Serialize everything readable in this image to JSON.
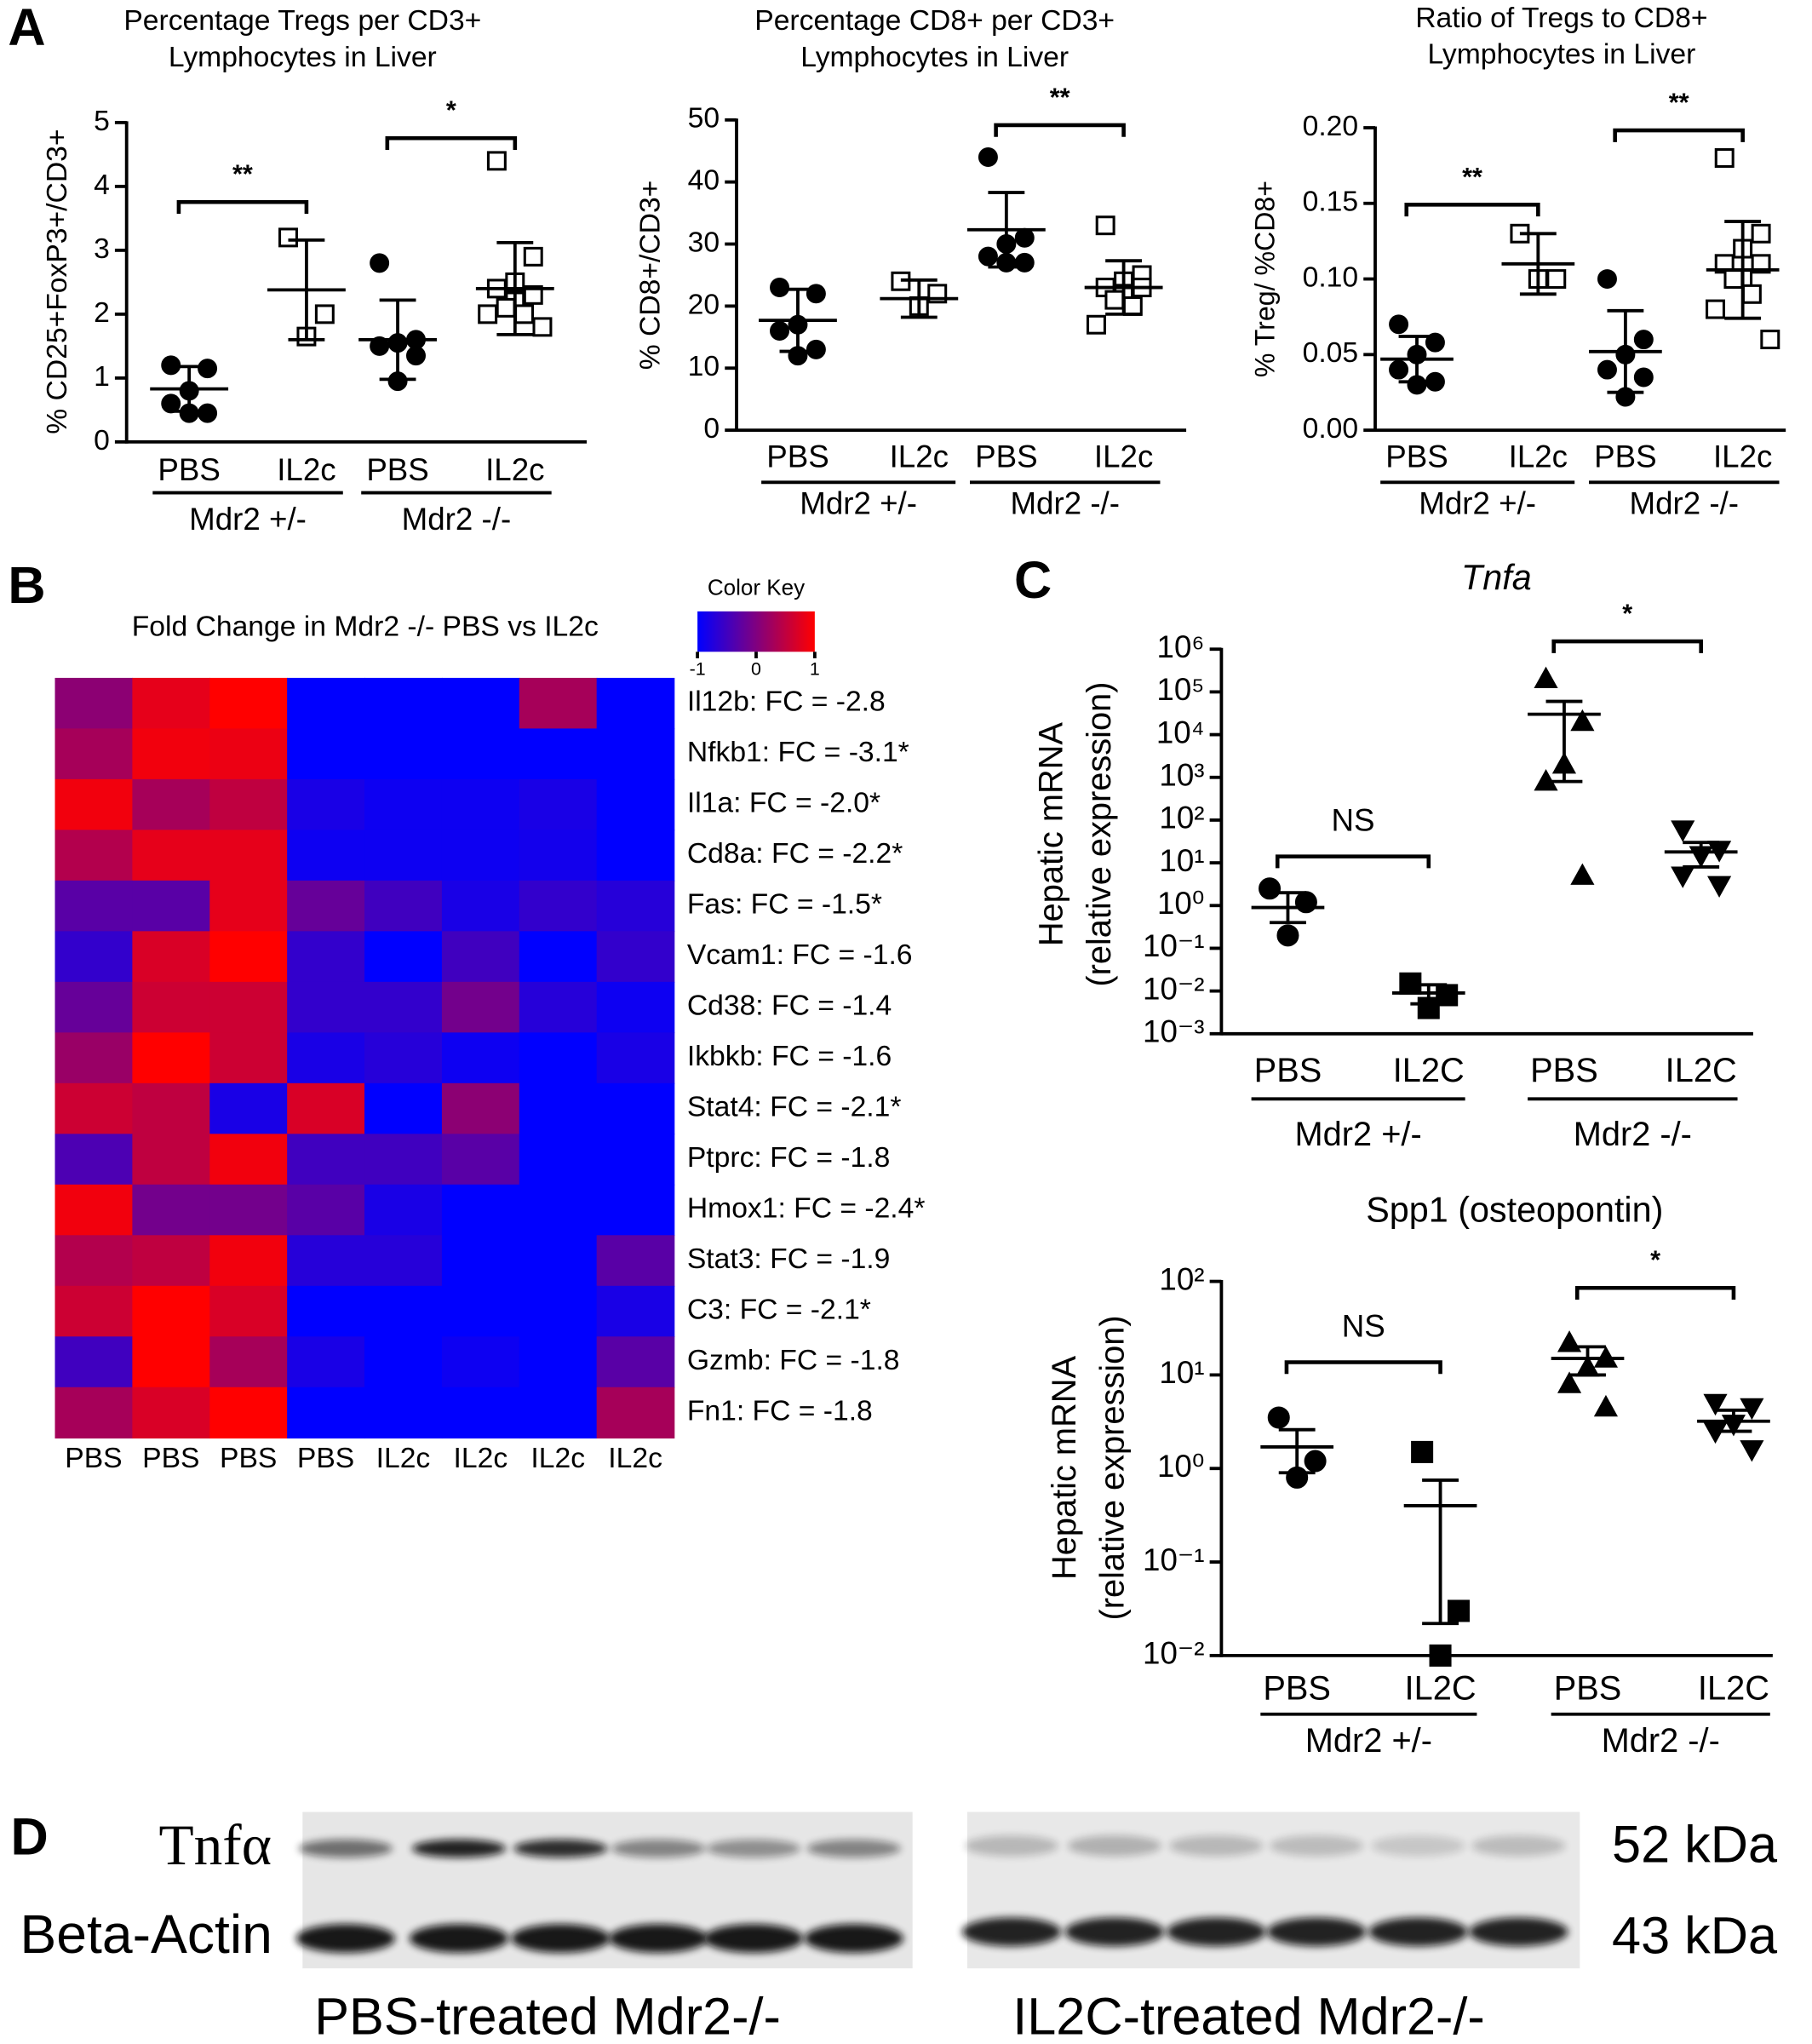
{
  "panel_labels": [
    "A",
    "B",
    "C",
    "D"
  ],
  "chart_data": [
    {
      "type": "strip",
      "title": [
        "Percentage Tregs per CD3+",
        "Lymphocytes in Liver"
      ],
      "ylabel": [
        "% CD25+FoxP3+/CD3+"
      ],
      "ylim": [
        0,
        5
      ],
      "yticks": [
        0,
        1,
        2,
        3,
        4,
        5
      ],
      "categories": [
        "PBS",
        "IL2c",
        "PBS",
        "IL2c"
      ],
      "markers": [
        "circle",
        "square_open",
        "circle",
        "square_open"
      ],
      "groups": [
        {
          "label": "Mdr2 +/-",
          "categories": [
            0,
            1
          ]
        },
        {
          "label": "Mdr2 -/-",
          "categories": [
            2,
            3
          ]
        }
      ],
      "points": [
        [
          1.2,
          1.15,
          0.8,
          0.6,
          0.45,
          0.45
        ],
        [
          3.2,
          2.0,
          1.65
        ],
        [
          2.8,
          1.6,
          1.55,
          1.5,
          1.35,
          0.95
        ],
        [
          4.4,
          2.9,
          2.5,
          2.4,
          2.3,
          2.2,
          2.1,
          2.0,
          2.0,
          1.8
        ]
      ],
      "means": [
        0.83,
        2.38,
        1.6,
        2.4
      ],
      "bar_low": [
        0.48,
        1.6,
        0.98,
        1.68
      ],
      "bar_high": [
        1.18,
        3.16,
        2.22,
        3.12
      ],
      "brackets": [
        {
          "label": "**",
          "from": 0,
          "to": 1
        },
        {
          "label": "*",
          "from": 2,
          "to": 3
        }
      ]
    },
    {
      "type": "strip",
      "title": [
        "Percentage CD8+ per CD3+",
        "Lymphocytes in Liver"
      ],
      "ylabel": [
        "% CD8+/CD3+"
      ],
      "ylim": [
        0,
        50
      ],
      "yticks": [
        0,
        10,
        20,
        30,
        40,
        50
      ],
      "categories": [
        "PBS",
        "IL2c",
        "PBS",
        "IL2c"
      ],
      "markers": [
        "circle",
        "square_open",
        "circle",
        "square_open"
      ],
      "groups": [
        {
          "label": "Mdr2 +/-",
          "categories": [
            0,
            1
          ]
        },
        {
          "label": "Mdr2 -/-",
          "categories": [
            2,
            3
          ]
        }
      ],
      "points": [
        [
          23,
          22,
          17,
          16,
          13,
          12
        ],
        [
          24,
          22,
          20
        ],
        [
          44,
          31,
          30,
          28,
          27,
          27
        ],
        [
          33,
          25,
          24,
          23,
          23,
          22,
          21,
          20,
          17
        ]
      ],
      "means": [
        17.7,
        21.2,
        32.3,
        23
      ],
      "bar_low": [
        12.7,
        18.2,
        26.3,
        18.7
      ],
      "bar_high": [
        22.7,
        24.2,
        38.3,
        27.3
      ],
      "brackets": [
        {
          "label": "**",
          "from": 2,
          "to": 3
        }
      ]
    },
    {
      "type": "strip",
      "title": [
        "Ratio of Tregs to CD8+",
        "Lymphocytes in Liver"
      ],
      "ylabel": [
        "% Treg/ %CD8+"
      ],
      "ylim": [
        0,
        0.2
      ],
      "yticks": [
        {
          "value": 0,
          "label": "0.00"
        },
        0.05,
        {
          "value": 0.1,
          "label": "0.10"
        },
        0.15,
        {
          "value": 0.2,
          "label": "0.20"
        }
      ],
      "categories": [
        "PBS",
        "IL2c",
        "PBS",
        "IL2c"
      ],
      "markers": [
        "circle",
        "square_open",
        "circle",
        "square_open"
      ],
      "groups": [
        {
          "label": "Mdr2 +/-",
          "categories": [
            0,
            1
          ]
        },
        {
          "label": "Mdr2 -/-",
          "categories": [
            2,
            3
          ]
        }
      ],
      "points": [
        [
          0.07,
          0.058,
          0.05,
          0.04,
          0.032,
          0.03
        ],
        [
          0.13,
          0.1,
          0.1
        ],
        [
          0.1,
          0.06,
          0.05,
          0.04,
          0.035,
          0.022
        ],
        [
          0.18,
          0.13,
          0.12,
          0.11,
          0.11,
          0.1,
          0.1,
          0.09,
          0.08,
          0.06
        ]
      ],
      "means": [
        0.047,
        0.11,
        0.052,
        0.106
      ],
      "bar_low": [
        0.032,
        0.09,
        0.025,
        0.074
      ],
      "bar_high": [
        0.062,
        0.13,
        0.079,
        0.138
      ],
      "brackets": [
        {
          "label": "**",
          "from": 0,
          "to": 1
        },
        {
          "label": "**",
          "from": 2,
          "to": 3
        }
      ]
    },
    {
      "type": "heatmap",
      "title": "Fold Change in Mdr2 -/- PBS vs IL2c",
      "column_labels": [
        "PBS",
        "PBS",
        "PBS",
        "PBS",
        "IL2c",
        "IL2c",
        "IL2c",
        "IL2c"
      ],
      "row_labels": [
        "Il12b: FC = -2.8",
        "Nfkb1: FC = -3.1*",
        "Il1a: FC = -2.0*",
        "Cd8a: FC = -2.2*",
        "Fas: FC = -1.5*",
        "Vcam1: FC = -1.6",
        "Cd38: FC = -1.4",
        "Ikbkb: FC = -1.6",
        "Stat4: FC = -2.1*",
        "Ptprc: FC = -1.8",
        "Hmox1: FC = -2.4*",
        "Stat3: FC = -1.9",
        "C3: FC = -2.1*",
        "Gzmb: FC = -1.8",
        "Fn1: FC = -1.8"
      ],
      "values": [
        [
          0.1,
          0.8,
          1,
          -1,
          -1,
          -1,
          0.3,
          -1
        ],
        [
          0.3,
          0.9,
          0.85,
          -1,
          -1,
          -1,
          -1,
          -1
        ],
        [
          0.9,
          0.3,
          0.5,
          -0.8,
          -0.9,
          -0.9,
          -0.8,
          -1
        ],
        [
          0.4,
          0.8,
          0.8,
          -0.9,
          -0.9,
          -0.9,
          -0.85,
          -1
        ],
        [
          -0.3,
          -0.3,
          0.8,
          -0.2,
          -0.5,
          -0.8,
          -0.6,
          -0.7
        ],
        [
          -0.6,
          0.7,
          1,
          -0.6,
          -1,
          -0.5,
          -1,
          -0.6
        ],
        [
          -0.2,
          0.6,
          0.6,
          -0.6,
          -0.6,
          -0.1,
          -0.7,
          -0.9
        ],
        [
          0.2,
          1,
          0.6,
          -0.8,
          -0.7,
          -0.9,
          -1,
          -0.8
        ],
        [
          0.6,
          0.5,
          -0.8,
          0.7,
          -1,
          0.1,
          -1,
          -1
        ],
        [
          -0.4,
          0.5,
          0.9,
          -0.5,
          -0.5,
          -0.3,
          -1,
          -1
        ],
        [
          0.9,
          -0.1,
          -0.1,
          -0.3,
          -0.8,
          -1,
          -1,
          -1
        ],
        [
          0.4,
          0.5,
          0.9,
          -0.7,
          -0.7,
          -1,
          -1,
          -0.3
        ],
        [
          0.6,
          1,
          0.7,
          -1,
          -1,
          -1,
          -1,
          -0.8
        ],
        [
          -0.5,
          1,
          0.3,
          -0.8,
          -1,
          -0.9,
          -1,
          -0.3
        ],
        [
          0.3,
          0.7,
          1,
          -1,
          -1,
          -1,
          -1,
          0.3
        ]
      ],
      "lim": [
        -1,
        1
      ],
      "colors": [
        "#0000ff",
        "#ff0000"
      ],
      "color_key": {
        "title": "Color Key",
        "ticks": [
          -1,
          0,
          1
        ]
      }
    },
    {
      "type": "strip",
      "title": [
        "Tnfa"
      ],
      "title_style": "italic",
      "log": true,
      "ylabel": [
        "Hepatic mRNA",
        "(relative expression)"
      ],
      "ylim": [
        0.001,
        1000000
      ],
      "yticks": [
        {
          "value": 0.001,
          "label": "10⁻³"
        },
        {
          "value": 0.01,
          "label": "10⁻²"
        },
        {
          "value": 0.1,
          "label": "10⁻¹"
        },
        {
          "value": 1,
          "label": "10⁰"
        },
        {
          "value": 10,
          "label": "10¹"
        },
        {
          "value": 100,
          "label": "10²"
        },
        {
          "value": 1000,
          "label": "10³"
        },
        {
          "value": 10000,
          "label": "10⁴"
        },
        {
          "value": 100000,
          "label": "10⁵"
        },
        {
          "value": 1000000,
          "label": "10⁶"
        }
      ],
      "categories": [
        "PBS",
        "IL2C",
        "PBS",
        "IL2C"
      ],
      "markers": [
        "circle",
        "square",
        "triangle_up",
        "triangle_down"
      ],
      "groups": [
        {
          "label": "Mdr2 +/-",
          "categories": [
            0,
            1
          ]
        },
        {
          "label": "Mdr2 -/-",
          "categories": [
            2,
            3
          ]
        }
      ],
      "points": [
        [
          2.5,
          1.2,
          0.2
        ],
        [
          0.015,
          0.008,
          0.004
        ],
        [
          200000,
          20000,
          2000,
          800,
          5
        ],
        [
          60,
          20,
          15,
          5,
          3
        ]
      ],
      "means": [
        0.9,
        0.009,
        30000,
        18
      ],
      "bar_low": [
        0.4,
        0.005,
        800,
        8
      ],
      "bar_high": [
        2,
        0.014,
        60000,
        30
      ],
      "brackets": [
        {
          "label": "NS",
          "from": 0,
          "to": 1
        },
        {
          "label": "*",
          "from": 2,
          "to": 3
        }
      ]
    },
    {
      "type": "strip",
      "title": [
        "Spp1 (osteopontin)"
      ],
      "log": true,
      "ylabel": [
        "Hepatic mRNA",
        "(relative expression)"
      ],
      "ylim": [
        0.01,
        100
      ],
      "yticks": [
        {
          "value": 0.01,
          "label": "10⁻²"
        },
        {
          "value": 0.1,
          "label": "10⁻¹"
        },
        {
          "value": 1,
          "label": "10⁰"
        },
        {
          "value": 10,
          "label": "10¹"
        },
        {
          "value": 100,
          "label": "10²"
        }
      ],
      "categories": [
        "PBS",
        "IL2C",
        "PBS",
        "IL2C"
      ],
      "markers": [
        "circle",
        "square",
        "triangle_up",
        "triangle_down"
      ],
      "groups": [
        {
          "label": "Mdr2 +/-",
          "categories": [
            0,
            1
          ]
        },
        {
          "label": "Mdr2 -/-",
          "categories": [
            2,
            3
          ]
        }
      ],
      "points": [
        [
          3.5,
          1.2,
          0.8
        ],
        [
          1.5,
          0.03,
          0.01
        ],
        [
          22,
          15,
          12,
          8,
          4.5
        ],
        [
          5,
          4.5,
          3,
          2.5,
          1.6
        ]
      ],
      "means": [
        1.7,
        0.4,
        15,
        3.2
      ],
      "bar_low": [
        0.9,
        0.022,
        10,
        2.5
      ],
      "bar_high": [
        2.6,
        0.75,
        20,
        4.2
      ],
      "brackets": [
        {
          "label": "NS",
          "from": 0,
          "to": 1
        },
        {
          "label": "*",
          "from": 2,
          "to": 3
        }
      ]
    }
  ],
  "blot": {
    "rows": [
      "Tnfα",
      "Beta-Actin"
    ],
    "sizes": [
      "52 kDa",
      "43 kDa"
    ],
    "captions": [
      "PBS-treated Mdr2-/-",
      "IL2C-treated Mdr2-/-"
    ]
  }
}
